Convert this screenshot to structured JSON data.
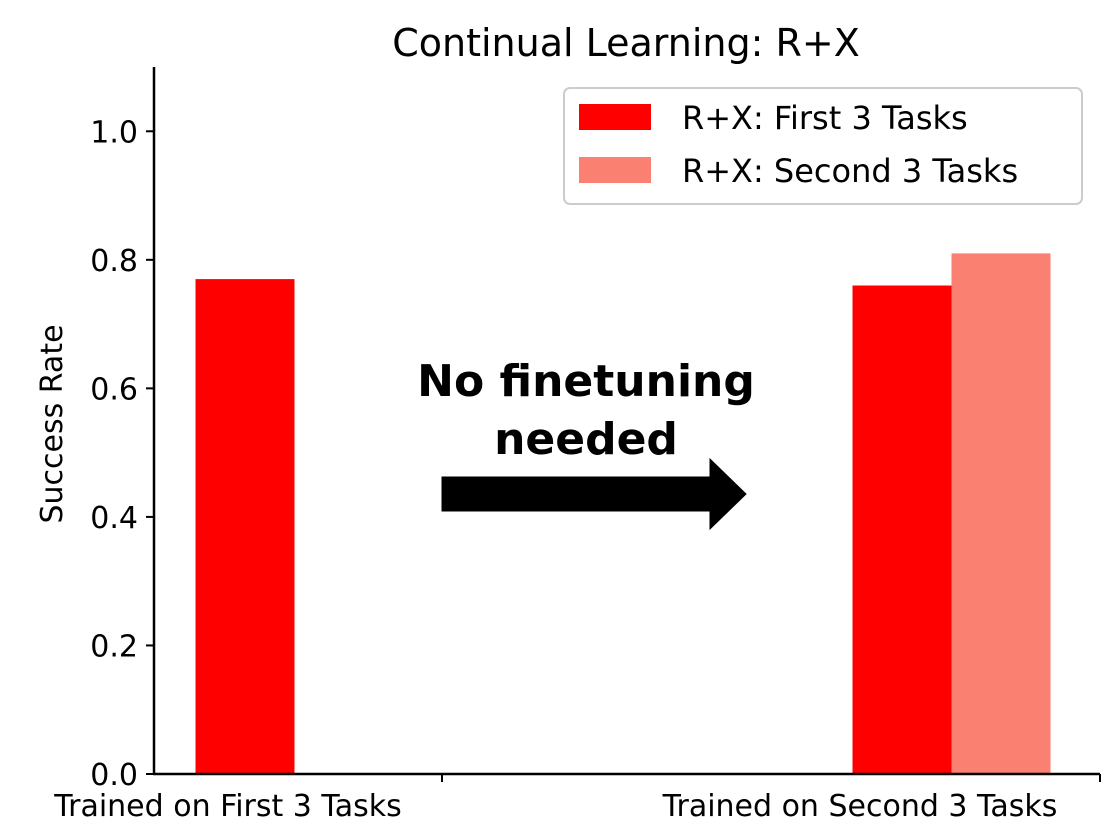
{
  "chart_data": {
    "type": "bar",
    "title": "Continual Learning: R+X",
    "xlabel": "",
    "ylabel": "Success Rate",
    "categories": [
      "Trained on First 3 Tasks",
      "Trained on Second 3 Tasks"
    ],
    "series": [
      {
        "name": "R+X: First 3 Tasks",
        "color": "#ff0000",
        "values": [
          0.77,
          0.76
        ]
      },
      {
        "name": "R+X: Second 3 Tasks",
        "color": "#fa8072",
        "values": [
          null,
          0.81
        ]
      }
    ],
    "ylim": [
      0,
      1.1
    ],
    "yticks": [
      "0.0",
      "0.2",
      "0.4",
      "0.6",
      "0.8",
      "1.0"
    ],
    "grid": false,
    "legend_position": "top-right",
    "annotation": {
      "lines": [
        "No finetuning",
        "needed"
      ],
      "arrow": "right-arrow-icon"
    }
  }
}
